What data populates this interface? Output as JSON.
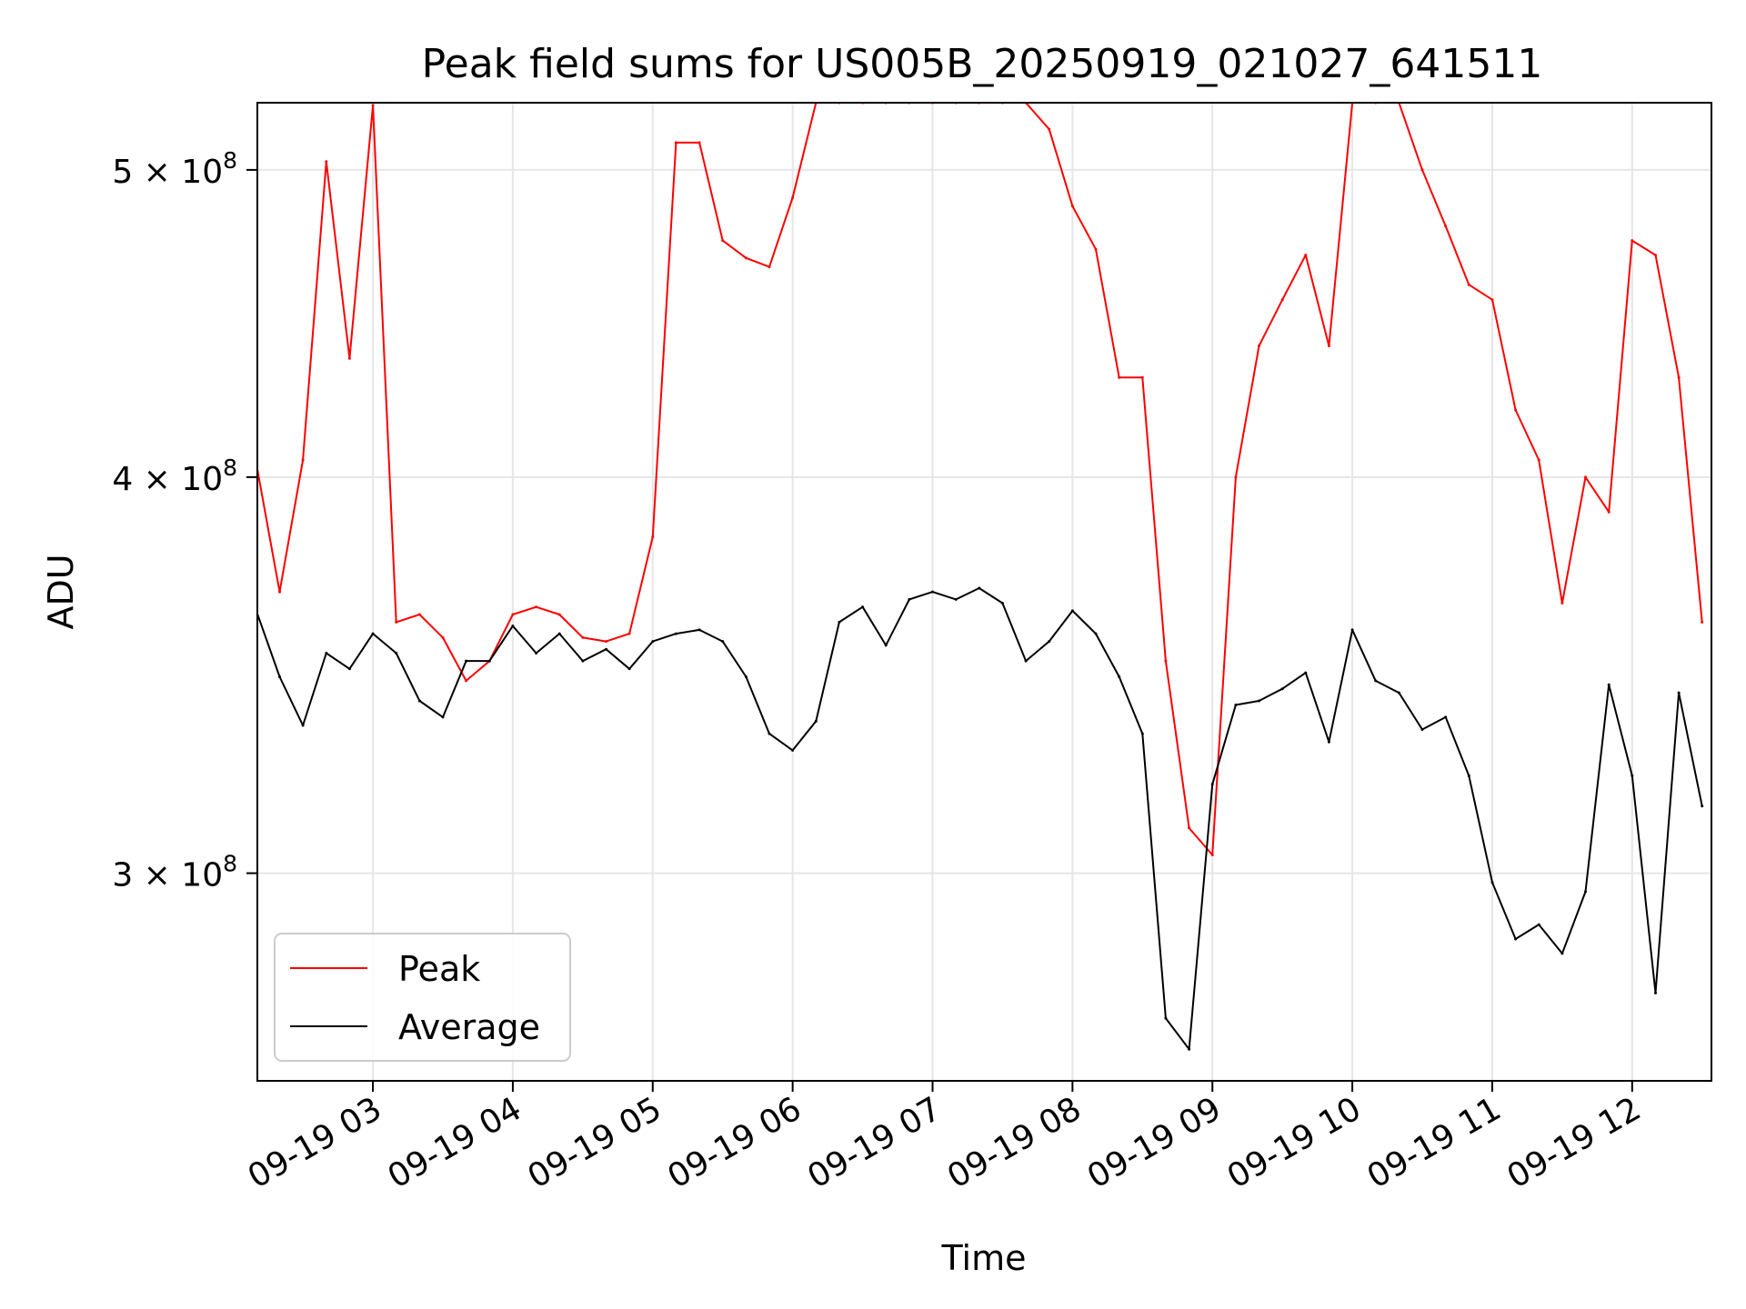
{
  "chart_data": {
    "type": "line",
    "title": "Peak field sums for US005B_20250919_021027_641511",
    "xlabel": "Time",
    "ylabel": "ADU",
    "y_scale": "log",
    "x_range": [
      "2025-09-19T02:10:27",
      "2025-09-19T12:34:00"
    ],
    "ylim": [
      258000000,
      525000000
    ],
    "grid": true,
    "legend_position": "lower-left",
    "x_tick_labels": [
      "09-19 03",
      "09-19 04",
      "09-19 05",
      "09-19 06",
      "09-19 07",
      "09-19 08",
      "09-19 09",
      "09-19 10",
      "09-19 11",
      "09-19 12"
    ],
    "x_ticks": [
      "2025-09-19T03:00",
      "2025-09-19T04:00",
      "2025-09-19T05:00",
      "2025-09-19T06:00",
      "2025-09-19T07:00",
      "2025-09-19T08:00",
      "2025-09-19T09:00",
      "2025-09-19T10:00",
      "2025-09-19T11:00",
      "2025-09-19T12:00"
    ],
    "y_ticks": [
      {
        "value": 300000000,
        "mantissa": "3",
        "exponent": "8"
      },
      {
        "value": 400000000,
        "mantissa": "4",
        "exponent": "8"
      },
      {
        "value": 500000000,
        "mantissa": "5",
        "exponent": "8"
      }
    ],
    "series": [
      {
        "name": "Peak",
        "color": "#ff0000",
        "x": [
          "02:10",
          "02:20",
          "02:30",
          "02:40",
          "02:50",
          "03:00",
          "03:10",
          "03:20",
          "03:30",
          "03:40",
          "03:50",
          "04:00",
          "04:10",
          "04:20",
          "04:30",
          "04:40",
          "04:50",
          "05:00",
          "05:10",
          "05:20",
          "05:30",
          "05:40",
          "05:50",
          "06:00",
          "06:10",
          "06:20",
          "06:30",
          "06:40",
          "06:50",
          "07:00",
          "07:10",
          "07:20",
          "07:30",
          "07:40",
          "07:50",
          "08:00",
          "08:10",
          "08:20",
          "08:30",
          "08:40",
          "08:50",
          "09:00",
          "09:10",
          "09:20",
          "09:30",
          "09:40",
          "09:50",
          "10:00",
          "10:10",
          "10:20",
          "10:30",
          "10:40",
          "10:50",
          "11:00",
          "11:10",
          "11:20",
          "11:30",
          "11:40",
          "11:50",
          "12:00",
          "12:10",
          "12:20",
          "12:30"
        ],
        "y": [
          404000000,
          368000000,
          405000000,
          503000000,
          436000000,
          524000000,
          360000000,
          362000000,
          356000000,
          345000000,
          350000000,
          362000000,
          364000000,
          362000000,
          356000000,
          355000000,
          357000000,
          383000000,
          510000000,
          510000000,
          475000000,
          469000000,
          466000000,
          490000000,
          525000000,
          525000000,
          525000000,
          525000000,
          525000000,
          525000000,
          525000000,
          525000000,
          525000000,
          525000000,
          515000000,
          487000000,
          472000000,
          430000000,
          430000000,
          350000000,
          310000000,
          304000000,
          400000000,
          440000000,
          455000000,
          470000000,
          440000000,
          525000000,
          525000000,
          525000000,
          500000000,
          480000000,
          460000000,
          455000000,
          420000000,
          405000000,
          365000000,
          400000000,
          390000000,
          475000000,
          470000000,
          430000000,
          360000000
        ]
      },
      {
        "name": "Average",
        "color": "#000000",
        "x": [
          "02:10",
          "02:20",
          "02:30",
          "02:40",
          "02:50",
          "03:00",
          "03:10",
          "03:20",
          "03:30",
          "03:40",
          "03:50",
          "04:00",
          "04:10",
          "04:20",
          "04:30",
          "04:40",
          "04:50",
          "05:00",
          "05:10",
          "05:20",
          "05:30",
          "05:40",
          "05:50",
          "06:00",
          "06:10",
          "06:20",
          "06:30",
          "06:40",
          "06:50",
          "07:00",
          "07:10",
          "07:20",
          "07:30",
          "07:40",
          "07:50",
          "08:00",
          "08:10",
          "08:20",
          "08:30",
          "08:40",
          "08:50",
          "09:00",
          "09:10",
          "09:20",
          "09:30",
          "09:40",
          "09:50",
          "10:00",
          "10:10",
          "10:20",
          "10:30",
          "10:40",
          "10:50",
          "11:00",
          "11:10",
          "11:20",
          "11:30",
          "11:40",
          "11:50",
          "12:00",
          "12:10",
          "12:20",
          "12:30"
        ],
        "y": [
          363000000,
          346000000,
          334000000,
          352000000,
          348000000,
          357000000,
          352000000,
          340000000,
          336000000,
          350000000,
          350000000,
          359000000,
          352000000,
          357000000,
          350000000,
          353000000,
          348000000,
          355000000,
          357000000,
          358000000,
          355000000,
          346000000,
          332000000,
          328000000,
          335000000,
          360000000,
          364000000,
          354000000,
          366000000,
          368000000,
          366000000,
          369000000,
          365000000,
          350000000,
          355000000,
          363000000,
          357000000,
          346000000,
          332000000,
          270000000,
          264000000,
          320000000,
          339000000,
          340000000,
          343000000,
          347000000,
          330000000,
          358000000,
          345000000,
          342000000,
          333000000,
          336000000,
          322000000,
          298000000,
          286000000,
          289000000,
          283000000,
          296000000,
          344000000,
          322000000,
          275000000,
          342000000,
          315000000
        ]
      }
    ]
  }
}
